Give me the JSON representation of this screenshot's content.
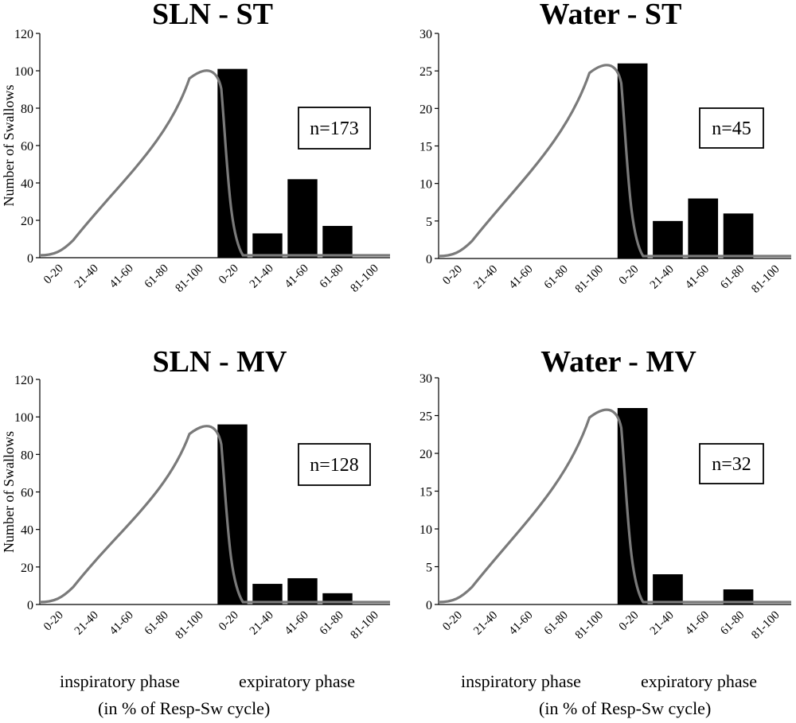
{
  "figure": {
    "phase_labels": {
      "inspiratory": "inspiratory phase",
      "expiratory": "expiratory phase",
      "cycle_note": "(in % of Resp-Sw cycle)"
    }
  },
  "chart_data": [
    {
      "type": "bar",
      "title": "SLN - ST",
      "ylabel": "Number of Swallows",
      "xlabel": "",
      "ylim": [
        0,
        120
      ],
      "yticks": [
        0,
        20,
        40,
        60,
        80,
        100,
        120
      ],
      "categories": [
        "0-20",
        "21-40",
        "41-60",
        "61-80",
        "81-100",
        "0-20",
        "21-40",
        "41-60",
        "61-80",
        "81-100"
      ],
      "values": [
        0,
        0,
        0,
        0,
        0,
        101,
        13,
        42,
        17,
        0
      ],
      "annotation": "n=173",
      "curve_peak": 101,
      "color": "#000000",
      "curve_color": "#7a7a7a"
    },
    {
      "type": "bar",
      "title": "Water - ST",
      "ylabel": "",
      "xlabel": "",
      "ylim": [
        0,
        30
      ],
      "yticks": [
        0,
        5,
        10,
        15,
        20,
        25,
        30
      ],
      "categories": [
        "0-20",
        "21-40",
        "41-60",
        "61-80",
        "81-100",
        "0-20",
        "21-40",
        "41-60",
        "61-80",
        "81-100"
      ],
      "values": [
        0,
        0,
        0,
        0,
        0,
        26,
        5,
        8,
        6,
        0
      ],
      "annotation": "n=45",
      "curve_peak": 26,
      "color": "#000000",
      "curve_color": "#7a7a7a"
    },
    {
      "type": "bar",
      "title": "SLN - MV",
      "ylabel": "Number of Swallows",
      "xlabel": "",
      "ylim": [
        0,
        120
      ],
      "yticks": [
        0,
        20,
        40,
        60,
        80,
        100,
        120
      ],
      "categories": [
        "0-20",
        "21-40",
        "41-60",
        "61-80",
        "81-100",
        "0-20",
        "21-40",
        "41-60",
        "61-80",
        "81-100"
      ],
      "values": [
        0,
        0,
        0,
        0,
        0,
        96,
        11,
        14,
        6,
        0
      ],
      "annotation": "n=128",
      "curve_peak": 96,
      "color": "#000000",
      "curve_color": "#7a7a7a"
    },
    {
      "type": "bar",
      "title": "Water - MV",
      "ylabel": "",
      "xlabel": "",
      "ylim": [
        0,
        30
      ],
      "yticks": [
        0,
        5,
        10,
        15,
        20,
        25,
        30
      ],
      "categories": [
        "0-20",
        "21-40",
        "41-60",
        "61-80",
        "81-100",
        "0-20",
        "21-40",
        "41-60",
        "61-80",
        "81-100"
      ],
      "values": [
        0,
        0,
        0,
        0,
        0,
        26,
        4,
        0,
        2,
        0
      ],
      "annotation": "n=32",
      "curve_peak": 26,
      "color": "#000000",
      "curve_color": "#7a7a7a"
    }
  ]
}
